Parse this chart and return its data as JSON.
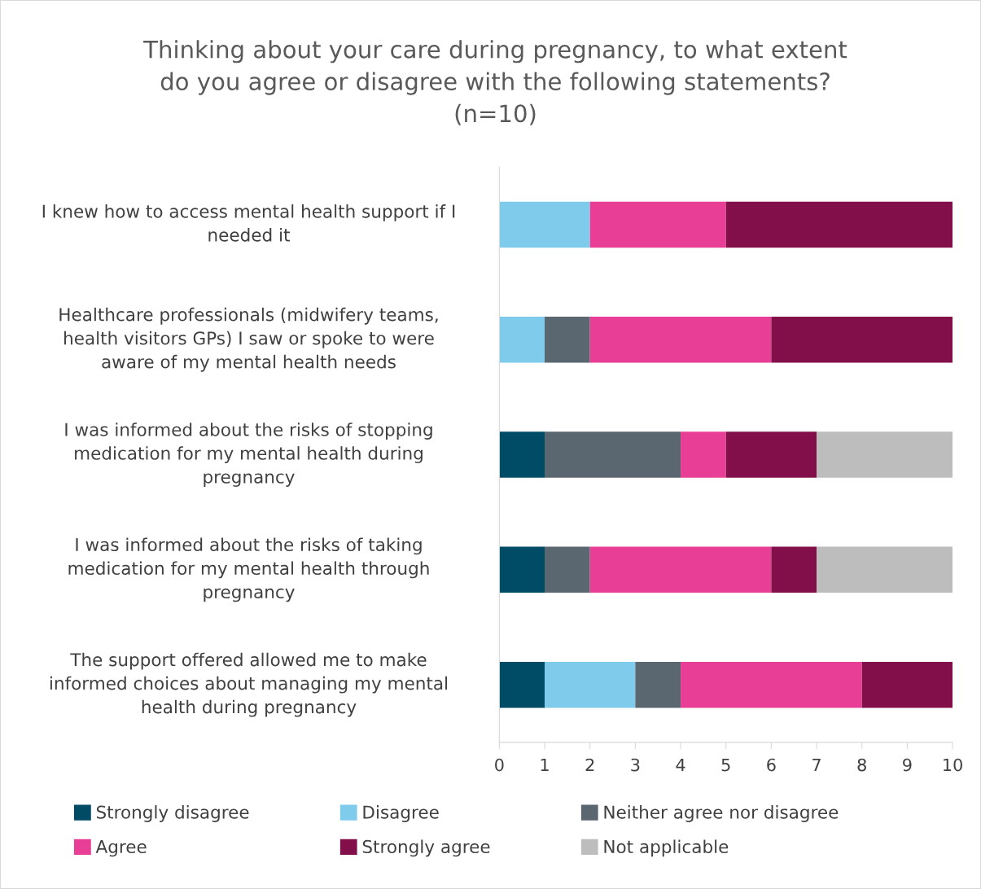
{
  "chart_data": {
    "type": "bar",
    "orientation": "horizontal",
    "stacked": true,
    "title": "Thinking about your care during pregnancy, to what extent\ndo you agree or disagree with the following statements?\n(n=10)",
    "categories": [
      "I knew how to access mental health support if I\nneeded it",
      "Healthcare professionals (midwifery teams,\nhealth visitors GPs) I saw or spoke to were\naware of my mental health needs",
      "I was informed about the risks of stopping\nmedication for my mental health during\npregnancy",
      "I was informed about the risks of taking\nmedication for my mental health through\npregnancy",
      "The support offered allowed me to make\ninformed choices about managing my mental\nhealth during pregnancy"
    ],
    "series": [
      {
        "name": "Strongly disagree",
        "color": "#004b66",
        "values": [
          0,
          0,
          1,
          1,
          1
        ]
      },
      {
        "name": "Disagree",
        "color": "#7ecbec",
        "values": [
          2,
          1,
          0,
          0,
          2
        ]
      },
      {
        "name": "Neither agree nor disagree",
        "color": "#5a6670",
        "values": [
          0,
          1,
          3,
          1,
          1
        ]
      },
      {
        "name": "Agree",
        "color": "#e83e96",
        "values": [
          3,
          4,
          1,
          4,
          4
        ]
      },
      {
        "name": "Strongly agree",
        "color": "#820f4a",
        "values": [
          5,
          4,
          2,
          1,
          2
        ]
      },
      {
        "name": "Not applicable",
        "color": "#bdbdbd",
        "values": [
          0,
          0,
          3,
          3,
          0
        ]
      }
    ],
    "xlim": [
      0,
      10
    ],
    "xticks": [
      0,
      1,
      2,
      3,
      4,
      5,
      6,
      7,
      8,
      9,
      10
    ],
    "grid": false,
    "legend": "bottom"
  }
}
